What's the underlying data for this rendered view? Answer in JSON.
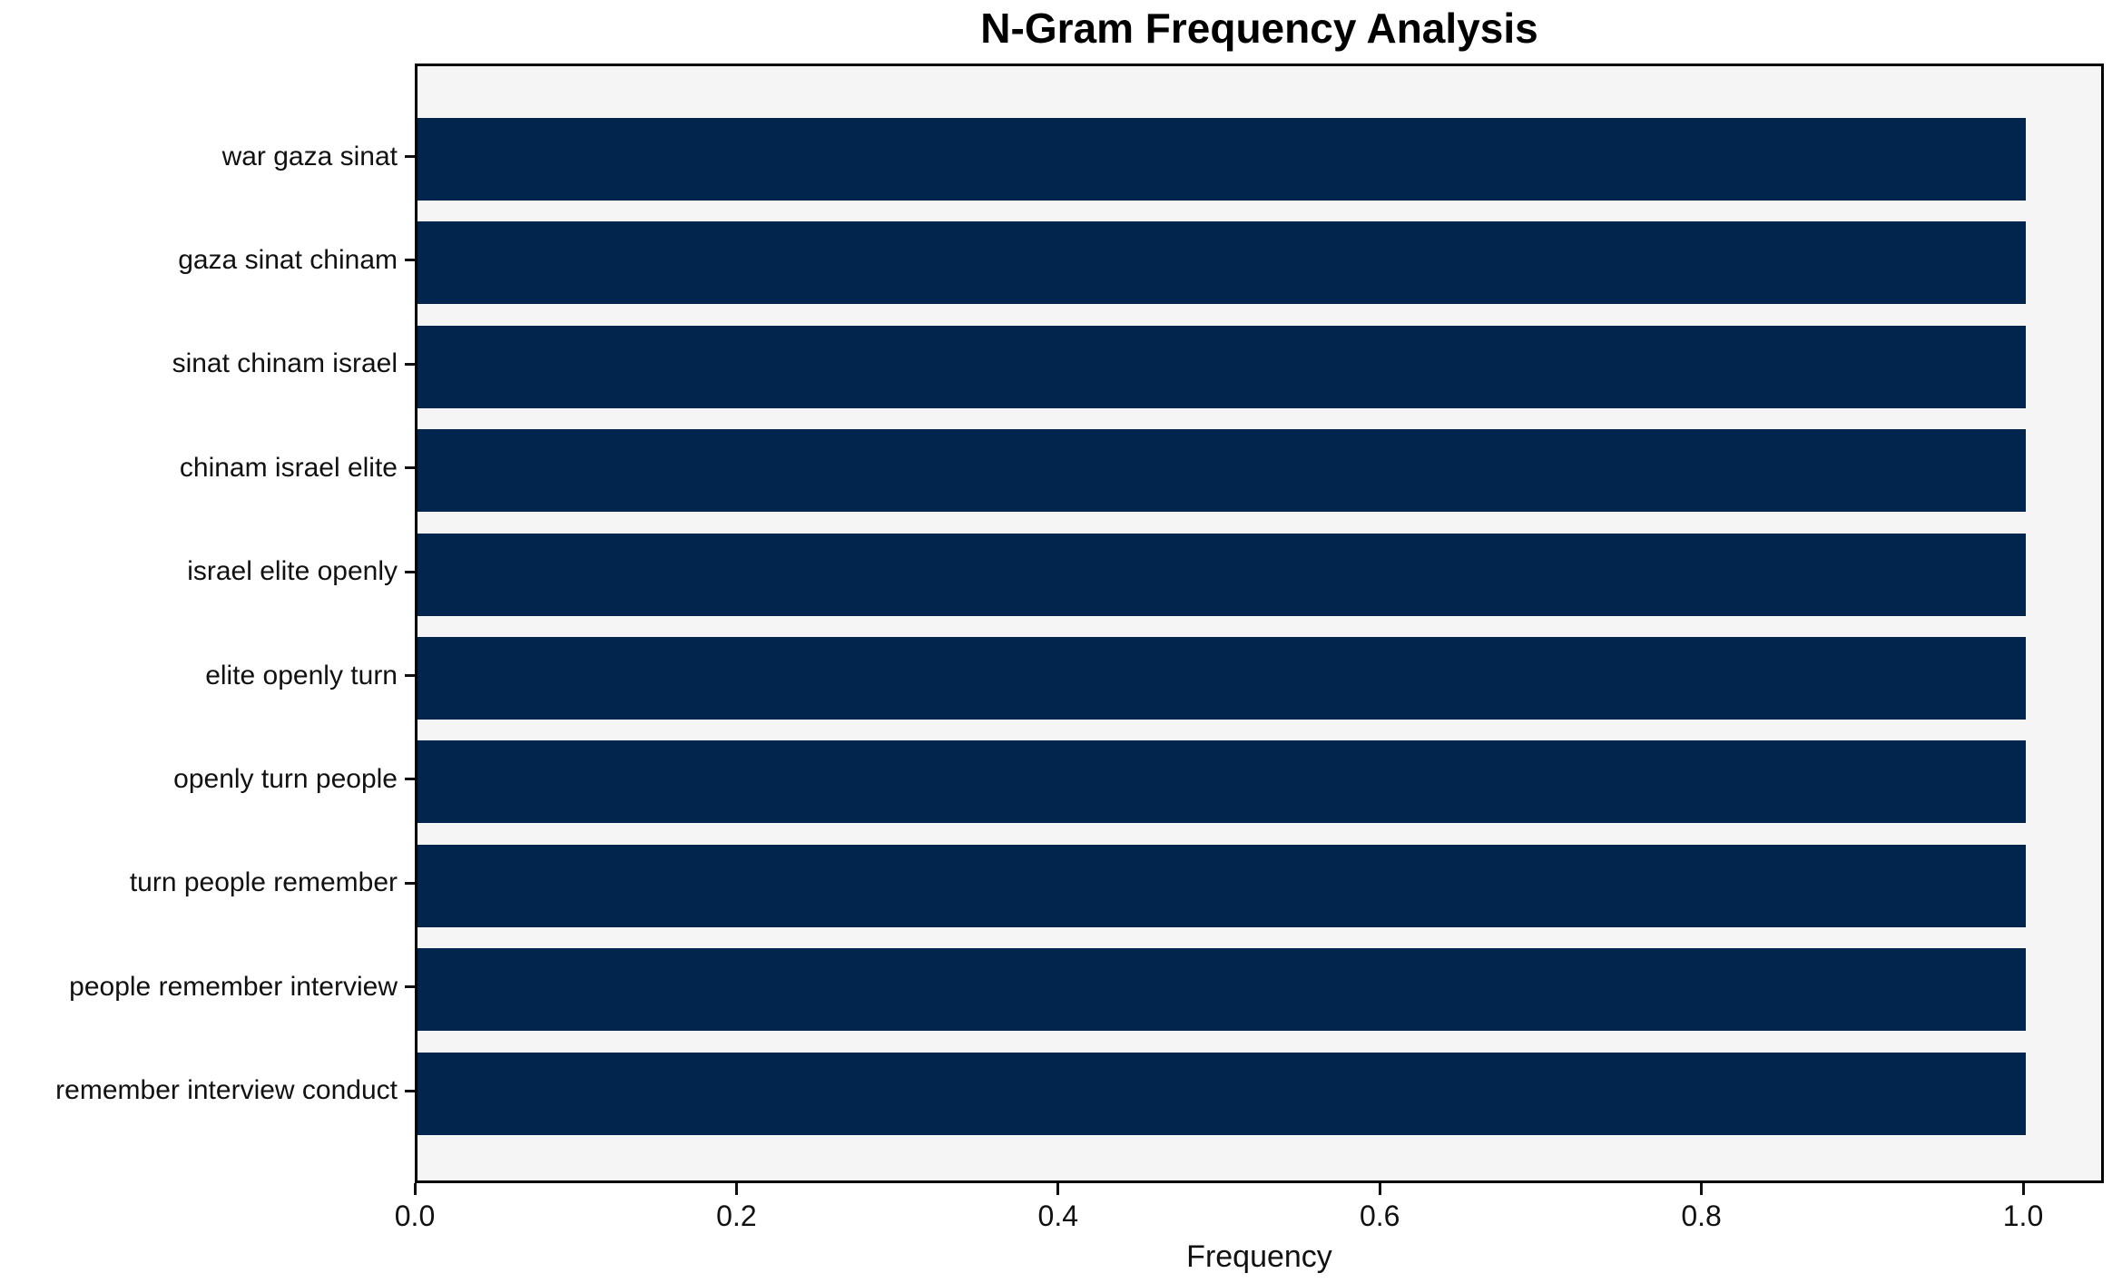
{
  "chart_data": {
    "type": "bar",
    "orientation": "horizontal",
    "title": "N-Gram Frequency Analysis",
    "xlabel": "Frequency",
    "ylabel": "",
    "categories": [
      "war gaza sinat",
      "gaza sinat chinam",
      "sinat chinam israel",
      "chinam israel elite",
      "israel elite openly",
      "elite openly turn",
      "openly turn people",
      "turn people remember",
      "people remember interview",
      "remember interview conduct"
    ],
    "values": [
      1.0,
      1.0,
      1.0,
      1.0,
      1.0,
      1.0,
      1.0,
      1.0,
      1.0,
      1.0
    ],
    "x_ticks": [
      "0.0",
      "0.2",
      "0.4",
      "0.6",
      "0.8",
      "1.0"
    ],
    "x_tick_values": [
      0.0,
      0.2,
      0.4,
      0.6,
      0.8,
      1.0
    ],
    "xlim": [
      0.0,
      1.05
    ],
    "grid": false,
    "legend": null,
    "bar_color": "#02254e",
    "plot_bg_color": "#f5f5f6",
    "frame_color": "#000000",
    "text_color": "#111111"
  }
}
